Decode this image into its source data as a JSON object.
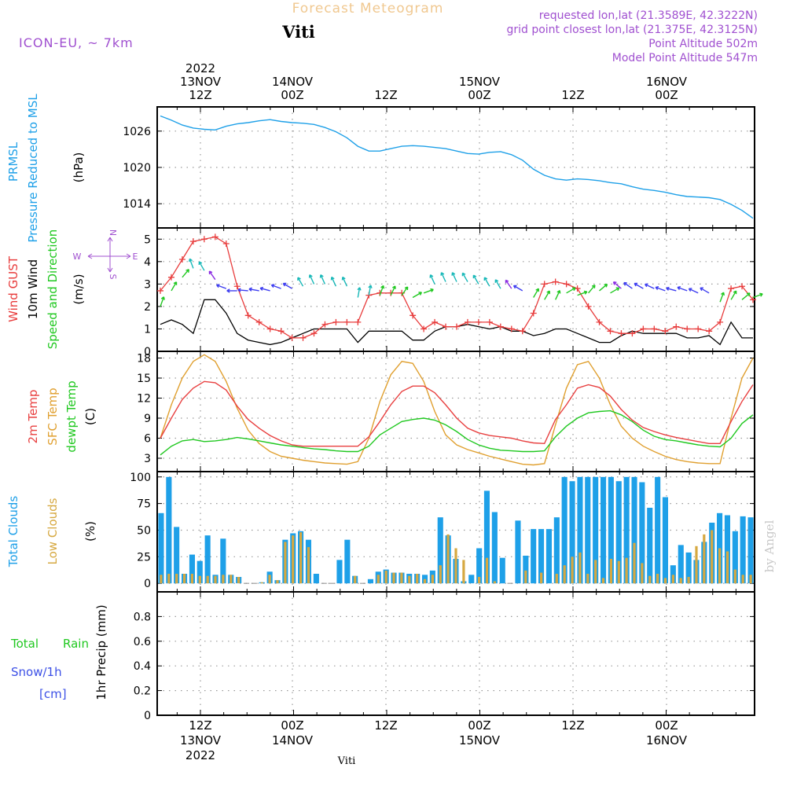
{
  "header": {
    "title": "Forecast Meteogram",
    "location": "Viti",
    "model": "ICON-EU, ~ 7km",
    "requested": "requested lon,lat (21.3589E, 42.3222N)",
    "grid_point": "grid point closest lon,lat (21.375E, 42.3125N)",
    "point_altitude": "Point Altitude 502m",
    "model_altitude": "Model Point Altitude 547m",
    "footer_location": "Viti",
    "watermark": "by Angel"
  },
  "time_axis": {
    "top_labels": [
      {
        "year": "2022",
        "date": "13NOV",
        "hour": "12Z"
      },
      {
        "date": "14NOV",
        "hour": "00Z"
      },
      {
        "hour": "12Z"
      },
      {
        "date": "15NOV",
        "hour": "00Z"
      },
      {
        "hour": "12Z"
      },
      {
        "date": "16NOV",
        "hour": "00Z"
      }
    ],
    "bottom_labels": [
      {
        "hour": "12Z",
        "date": "13NOV",
        "year": "2022"
      },
      {
        "hour": "00Z",
        "date": "14NOV"
      },
      {
        "hour": "12Z"
      },
      {
        "hour": "00Z",
        "date": "15NOV"
      },
      {
        "hour": "12Z"
      },
      {
        "hour": "00Z",
        "date": "16NOV"
      }
    ]
  },
  "panel_labels": {
    "pressure": {
      "l1": "PRMSL",
      "l2": "Pressure Reduced to MSL",
      "unit": "(hPa)"
    },
    "wind": {
      "l1": "Wind GUST",
      "l2": "10m Wind",
      "l3": "Speed and Direction",
      "unit": "(m/s)",
      "compass": {
        "n": "N",
        "s": "S",
        "w": "W",
        "e": "E"
      }
    },
    "temp": {
      "l1": "2m Temp",
      "l2": "SFC Temp",
      "l3": "dewpt Temp",
      "unit": "(C)"
    },
    "clouds": {
      "l1": "Total Clouds",
      "l2": "Low Clouds",
      "unit": "(%)"
    },
    "precip": {
      "l1": "Total",
      "l1b": "Rain",
      "l2": "Snow/1h",
      "l3": "[cm]",
      "unit": "1hr Precip (mm)"
    }
  },
  "colors": {
    "pressure": "#1ea0e8",
    "gust": "#e83c3c",
    "wind": "#000000",
    "temp2m": "#e84040",
    "sfc": "#e0a030",
    "dewpt": "#20c820",
    "total_clouds": "#1ea0e8",
    "low_clouds": "#d6a840",
    "title": "#f0c890",
    "meta": "#a050d0",
    "rain": "#20c820",
    "snow": "#3c50e6"
  },
  "chart_data": [
    {
      "type": "line",
      "title": "PRMSL Pressure Reduced to MSL",
      "ylabel": "hPa",
      "x_hours_start": 0,
      "x_step_hours": 1,
      "ylim": [
        1010,
        1030
      ],
      "yticks": [
        1014,
        1020,
        1026
      ],
      "series": [
        {
          "name": "PRMSL",
          "values": [
            1028.5,
            1027.8,
            1027.0,
            1026.5,
            1026.3,
            1026.2,
            1026.8,
            1027.2,
            1027.4,
            1027.7,
            1027.9,
            1027.6,
            1027.4,
            1027.3,
            1027.1,
            1026.6,
            1025.9,
            1024.9,
            1023.5,
            1022.7,
            1022.7,
            1023.1,
            1023.5,
            1023.6,
            1023.5,
            1023.3,
            1023.1,
            1022.7,
            1022.3,
            1022.2,
            1022.5,
            1022.6,
            1022.1,
            1021.2,
            1019.7,
            1018.7,
            1018.1,
            1017.9,
            1018.1,
            1018.0,
            1017.8,
            1017.5,
            1017.3,
            1016.8,
            1016.4,
            1016.2,
            1015.9,
            1015.5,
            1015.2,
            1015.1,
            1015.0,
            1014.7,
            1013.9,
            1012.9,
            1011.6
          ]
        }
      ]
    },
    {
      "type": "line",
      "title": "Wind GUST / 10m Wind",
      "ylabel": "m/s",
      "ylim": [
        0,
        5.5
      ],
      "yticks": [
        0,
        1,
        2,
        3,
        4,
        5
      ],
      "series": [
        {
          "name": "Wind GUST",
          "values": [
            2.7,
            3.3,
            4.1,
            4.9,
            5.0,
            5.1,
            4.8,
            2.9,
            1.6,
            1.3,
            1.0,
            0.9,
            0.6,
            0.6,
            0.8,
            1.2,
            1.3,
            1.3,
            1.3,
            2.5,
            2.6,
            2.6,
            2.6,
            1.6,
            1.0,
            1.3,
            1.1,
            1.1,
            1.3,
            1.3,
            1.3,
            1.1,
            1.0,
            0.9,
            1.7,
            3.0,
            3.1,
            3.0,
            2.8,
            2.0,
            1.3,
            0.9,
            0.8,
            0.8,
            1.0,
            1.0,
            0.9,
            1.1,
            1.0,
            1.0,
            0.9,
            1.3,
            2.8,
            2.9,
            2.3
          ]
        },
        {
          "name": "10m Wind",
          "values": [
            1.2,
            1.4,
            1.2,
            0.8,
            2.3,
            2.3,
            1.7,
            0.8,
            0.5,
            0.4,
            0.3,
            0.4,
            0.6,
            0.8,
            1.0,
            1.0,
            1.0,
            1.0,
            0.4,
            0.9,
            0.9,
            0.9,
            0.9,
            0.5,
            0.5,
            0.9,
            1.1,
            1.1,
            1.2,
            1.1,
            1.0,
            1.1,
            0.9,
            0.9,
            0.7,
            0.8,
            1.0,
            1.0,
            0.8,
            0.6,
            0.4,
            0.4,
            0.7,
            0.9,
            0.8,
            0.8,
            0.8,
            0.8,
            0.6,
            0.6,
            0.7,
            0.3,
            1.3,
            0.6,
            0.6
          ]
        }
      ],
      "wind_barbs": [
        {
          "speed": 2.0,
          "dir": 200
        },
        {
          "speed": 2.7,
          "dir": 210
        },
        {
          "speed": 3.3,
          "dir": 220
        },
        {
          "speed": 3.7,
          "dir": 160
        },
        {
          "speed": 3.6,
          "dir": 150
        },
        {
          "speed": 3.2,
          "dir": 145
        },
        {
          "speed": 2.8,
          "dir": 110
        },
        {
          "speed": 2.7,
          "dir": 90
        },
        {
          "speed": 2.7,
          "dir": 95
        },
        {
          "speed": 2.7,
          "dir": 100
        },
        {
          "speed": 2.7,
          "dir": 105
        },
        {
          "speed": 2.8,
          "dir": 110
        },
        {
          "speed": 2.8,
          "dir": 120
        },
        {
          "speed": 2.9,
          "dir": 150
        },
        {
          "speed": 3.0,
          "dir": 155
        },
        {
          "speed": 3.0,
          "dir": 155
        },
        {
          "speed": 2.9,
          "dir": 155
        },
        {
          "speed": 2.9,
          "dir": 155
        },
        {
          "speed": 2.4,
          "dir": 190
        },
        {
          "speed": 2.5,
          "dir": 190
        },
        {
          "speed": 2.5,
          "dir": 200
        },
        {
          "speed": 2.5,
          "dir": 205
        },
        {
          "speed": 2.5,
          "dir": 215
        },
        {
          "speed": 2.4,
          "dir": 240
        },
        {
          "speed": 2.6,
          "dir": 250
        },
        {
          "speed": 3.0,
          "dir": 155
        },
        {
          "speed": 3.1,
          "dir": 155
        },
        {
          "speed": 3.1,
          "dir": 155
        },
        {
          "speed": 3.1,
          "dir": 150
        },
        {
          "speed": 3.0,
          "dir": 150
        },
        {
          "speed": 2.9,
          "dir": 150
        },
        {
          "speed": 2.8,
          "dir": 150
        },
        {
          "speed": 2.8,
          "dir": 145
        },
        {
          "speed": 2.7,
          "dir": 120
        },
        {
          "speed": 2.4,
          "dir": 210
        },
        {
          "speed": 2.3,
          "dir": 210
        },
        {
          "speed": 2.3,
          "dir": 205
        },
        {
          "speed": 2.6,
          "dir": 240
        },
        {
          "speed": 2.5,
          "dir": 250
        },
        {
          "speed": 2.6,
          "dir": 220
        },
        {
          "speed": 2.7,
          "dir": 230
        },
        {
          "speed": 2.6,
          "dir": 240
        },
        {
          "speed": 2.8,
          "dir": 130
        },
        {
          "speed": 2.8,
          "dir": 125
        },
        {
          "speed": 2.8,
          "dir": 120
        },
        {
          "speed": 2.8,
          "dir": 115
        },
        {
          "speed": 2.7,
          "dir": 110
        },
        {
          "speed": 2.7,
          "dir": 105
        },
        {
          "speed": 2.7,
          "dir": 110
        },
        {
          "speed": 2.6,
          "dir": 115
        },
        {
          "speed": 2.6,
          "dir": 120
        },
        {
          "speed": 2.2,
          "dir": 200
        },
        {
          "speed": 2.3,
          "dir": 210
        },
        {
          "speed": 2.3,
          "dir": 230
        },
        {
          "speed": 2.4,
          "dir": 250
        }
      ]
    },
    {
      "type": "line",
      "title": "2m Temp / SFC Temp / dewpt Temp",
      "ylabel": "C",
      "ylim": [
        1,
        19
      ],
      "yticks": [
        3,
        6,
        9,
        12,
        15,
        18
      ],
      "series": [
        {
          "name": "2m Temp",
          "values": [
            6.0,
            9.0,
            11.8,
            13.5,
            14.5,
            14.3,
            13.2,
            10.8,
            8.8,
            7.5,
            6.4,
            5.6,
            5.0,
            4.8,
            4.8,
            4.8,
            4.8,
            4.8,
            4.8,
            6.2,
            8.5,
            11.0,
            13.0,
            13.8,
            13.8,
            12.8,
            11.0,
            9.0,
            7.5,
            6.8,
            6.4,
            6.2,
            6.0,
            5.6,
            5.3,
            5.2,
            8.8,
            11.0,
            13.5,
            14.0,
            13.6,
            12.3,
            10.3,
            8.7,
            7.6,
            7.0,
            6.5,
            6.1,
            5.8,
            5.5,
            5.2,
            5.2,
            8.5,
            11.5,
            14.0
          ]
        },
        {
          "name": "SFC Temp",
          "values": [
            6.0,
            11.0,
            15.0,
            17.5,
            18.5,
            17.5,
            14.5,
            10.5,
            7.2,
            5.2,
            4.0,
            3.3,
            3.0,
            2.7,
            2.5,
            2.3,
            2.2,
            2.1,
            2.5,
            6.0,
            11.5,
            15.5,
            17.5,
            17.2,
            14.5,
            10.0,
            6.5,
            5.0,
            4.3,
            3.8,
            3.3,
            2.9,
            2.5,
            2.1,
            2.0,
            2.2,
            8.0,
            13.5,
            17.0,
            17.5,
            15.0,
            11.0,
            7.8,
            6.0,
            4.8,
            4.0,
            3.3,
            2.8,
            2.5,
            2.3,
            2.2,
            2.2,
            9.0,
            15.0,
            18.0
          ]
        },
        {
          "name": "dewpt Temp",
          "values": [
            3.5,
            4.8,
            5.6,
            5.8,
            5.5,
            5.6,
            5.8,
            6.1,
            5.9,
            5.6,
            5.3,
            5.0,
            4.8,
            4.6,
            4.4,
            4.3,
            4.1,
            4.0,
            4.0,
            4.8,
            6.5,
            7.5,
            8.5,
            8.8,
            9.0,
            8.7,
            8.0,
            7.0,
            5.8,
            5.0,
            4.5,
            4.2,
            4.1,
            4.0,
            4.0,
            4.1,
            6.2,
            7.8,
            9.0,
            9.8,
            10.0,
            10.1,
            9.5,
            8.5,
            7.2,
            6.3,
            5.8,
            5.6,
            5.3,
            5.0,
            4.8,
            4.7,
            6.0,
            8.2,
            9.5
          ]
        }
      ]
    },
    {
      "type": "bar",
      "title": "Total Clouds / Low Clouds",
      "ylabel": "%",
      "ylim": [
        -8,
        105
      ],
      "yticks": [
        0,
        25,
        50,
        75,
        100
      ],
      "series": [
        {
          "name": "Total Clouds",
          "values": [
            66,
            100,
            53,
            9,
            27,
            21,
            45,
            8,
            42,
            8,
            6,
            0,
            0,
            1,
            11,
            3,
            41,
            47,
            49,
            41,
            9,
            0,
            0,
            22,
            41,
            7,
            0,
            4,
            11,
            13,
            10,
            10,
            9,
            9,
            8,
            12,
            62,
            45,
            23,
            2,
            8,
            33,
            87,
            67,
            24,
            0,
            59,
            26,
            51,
            51,
            51,
            62,
            100,
            96,
            100,
            100,
            100,
            100,
            100,
            96,
            100,
            100,
            95,
            71,
            100,
            81,
            17,
            36,
            29,
            22,
            39,
            57,
            66,
            64,
            49,
            63,
            62
          ]
        },
        {
          "name": "Low Clouds",
          "values": [
            8,
            9,
            9,
            9,
            9,
            7,
            7,
            7,
            8,
            8,
            6,
            0,
            0,
            1,
            8,
            3,
            39,
            45,
            48,
            34,
            0,
            0,
            0,
            0,
            0,
            7,
            0,
            0,
            8,
            12,
            10,
            10,
            7,
            9,
            4,
            8,
            17,
            46,
            33,
            22,
            0,
            6,
            24,
            2,
            0,
            0,
            0,
            12,
            0,
            10,
            0,
            9,
            17,
            25,
            29,
            9,
            22,
            5,
            23,
            21,
            24,
            38,
            19,
            7,
            9,
            5,
            8,
            5,
            6,
            35,
            46,
            50,
            33,
            30,
            13,
            8,
            8
          ]
        }
      ]
    },
    {
      "type": "bar",
      "title": "1hr Precip (mm)",
      "ylabel": "mm",
      "ylim": [
        0,
        1.0
      ],
      "yticks": [
        0,
        0.2,
        0.4,
        0.6,
        0.8
      ],
      "series": [
        {
          "name": "Total Rain",
          "values": []
        },
        {
          "name": "Snow/1h",
          "values": []
        }
      ]
    }
  ]
}
